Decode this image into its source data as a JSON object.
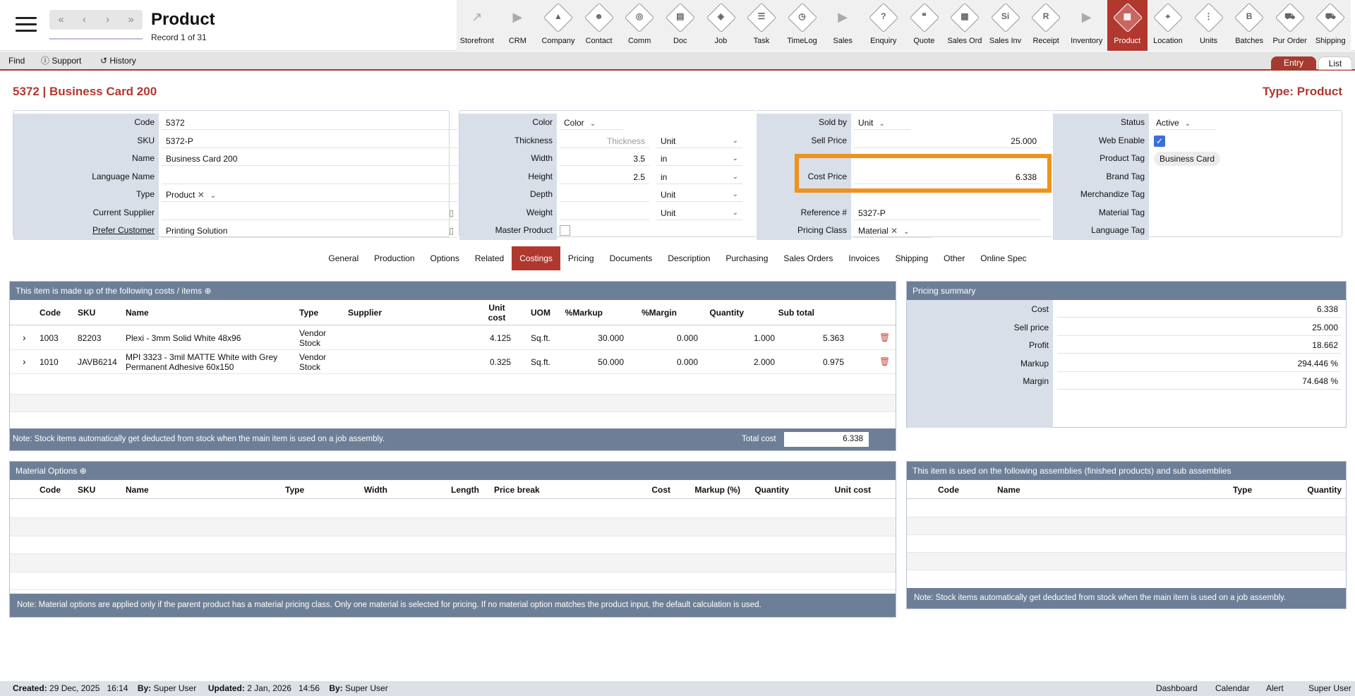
{
  "header": {
    "title": "Product",
    "record": "Record 1 of 31"
  },
  "nav_buttons": [
    "«",
    "‹",
    "›",
    "»"
  ],
  "modules": [
    {
      "label": "Storefront",
      "kind": "ext",
      "icon": "external-link-icon"
    },
    {
      "label": "CRM",
      "kind": "arrow",
      "icon": "arrow-right-icon"
    },
    {
      "label": "Company",
      "kind": "ic",
      "icon": "company-icon",
      "glyph": "▲"
    },
    {
      "label": "Contact",
      "kind": "ic",
      "icon": "contact-icon",
      "glyph": "☻"
    },
    {
      "label": "Comm",
      "kind": "ic",
      "icon": "globe-icon",
      "glyph": "◎"
    },
    {
      "label": "Doc",
      "kind": "ic",
      "icon": "document-icon",
      "glyph": "▤"
    },
    {
      "label": "Job",
      "kind": "ic",
      "icon": "job-icon",
      "glyph": "◈"
    },
    {
      "label": "Task",
      "kind": "ic",
      "icon": "clipboard-icon",
      "glyph": "☰"
    },
    {
      "label": "TimeLog",
      "kind": "ic",
      "icon": "clock-icon",
      "glyph": "◷"
    },
    {
      "label": "Sales",
      "kind": "arrow",
      "icon": "arrow-right-icon"
    },
    {
      "label": "Enquiry",
      "kind": "ic",
      "icon": "enquiry-icon",
      "glyph": "?"
    },
    {
      "label": "Quote",
      "kind": "ic",
      "icon": "quote-icon",
      "glyph": "❝"
    },
    {
      "label": "Sales Ord",
      "kind": "ic",
      "icon": "sales-order-icon",
      "glyph": "▦"
    },
    {
      "label": "Sales Inv",
      "kind": "ic",
      "icon": "sales-invoice-icon",
      "glyph": "Si"
    },
    {
      "label": "Receipt",
      "kind": "ic",
      "icon": "receipt-icon",
      "glyph": "R"
    },
    {
      "label": "Inventory",
      "kind": "arrow",
      "icon": "arrow-right-icon"
    },
    {
      "label": "Product",
      "kind": "ic",
      "icon": "product-icon",
      "glyph": "▦",
      "active": true
    },
    {
      "label": "Location",
      "kind": "ic",
      "icon": "location-icon",
      "glyph": "⌖"
    },
    {
      "label": "Units",
      "kind": "ic",
      "icon": "units-icon",
      "glyph": "⋮"
    },
    {
      "label": "Batches",
      "kind": "ic",
      "icon": "batches-icon",
      "glyph": "B"
    },
    {
      "label": "Pur Order",
      "kind": "ic",
      "icon": "cart-icon",
      "glyph": "⛟"
    },
    {
      "label": "Shipping",
      "kind": "ic",
      "icon": "truck-icon",
      "glyph": "⛟"
    }
  ],
  "toolbar": {
    "find": "Find",
    "support": "Support",
    "history": "History",
    "entry": "Entry",
    "list": "List"
  },
  "record_title": "5372 | Business Card 200",
  "record_type": "Type: Product",
  "form1": [
    {
      "label": "Code",
      "value": "5372"
    },
    {
      "label": "SKU",
      "value": "5372-P"
    },
    {
      "label": "Name",
      "value": "Business Card 200"
    },
    {
      "label": "Language Name",
      "value": ""
    },
    {
      "label": "Type",
      "value": "Product"
    },
    {
      "label": "Current Supplier",
      "value": ""
    },
    {
      "label": "Prefer Customer",
      "value": "Printing Solution"
    }
  ],
  "form2": [
    {
      "label": "Color",
      "value": "Color",
      "unit": ""
    },
    {
      "label": "Thickness",
      "value": "Thickness",
      "unit": "Unit"
    },
    {
      "label": "Width",
      "value": "3.5",
      "unit": "in"
    },
    {
      "label": "Height",
      "value": "2.5",
      "unit": "in"
    },
    {
      "label": "Depth",
      "value": "",
      "unit": "Unit"
    },
    {
      "label": "Weight",
      "value": "",
      "unit": "Unit"
    },
    {
      "label": "Master Product",
      "value": "",
      "unit": ""
    }
  ],
  "form3": [
    {
      "label": "Sold by",
      "value": "Unit"
    },
    {
      "label": "Sell Price",
      "value": "25.000"
    },
    {
      "label": "",
      "value": ""
    },
    {
      "label": "Cost Price",
      "value": "6.338"
    },
    {
      "label": "",
      "value": ""
    },
    {
      "label": "Reference #",
      "value": "5327-P"
    },
    {
      "label": "Pricing Class",
      "value": "Material"
    }
  ],
  "form4": [
    {
      "label": "Status",
      "value": "Active"
    },
    {
      "label": "Web Enable",
      "value": ""
    },
    {
      "label": "Product Tag",
      "value": "Business Card"
    },
    {
      "label": "Brand Tag",
      "value": ""
    },
    {
      "label": "Merchandize Tag",
      "value": ""
    },
    {
      "label": "Material Tag",
      "value": ""
    },
    {
      "label": "Language Tag",
      "value": ""
    }
  ],
  "tabs": [
    "General",
    "Production",
    "Options",
    "Related",
    "Costings",
    "Pricing",
    "Documents",
    "Description",
    "Purchasing",
    "Sales Orders",
    "Invoices",
    "Shipping",
    "Other",
    "Online Spec"
  ],
  "active_tab": "Costings",
  "costs": {
    "title": "This item is made up of the following costs / items",
    "columns": [
      "Code",
      "SKU",
      "Name",
      "Type",
      "Supplier",
      "Unit cost",
      "UOM",
      "%Markup",
      "%Margin",
      "Quantity",
      "Sub total"
    ],
    "rows": [
      {
        "code": "1003",
        "sku": "82203",
        "name": "Plexi - 3mm Solid White 48x96",
        "type": "Vendor Stock",
        "supplier": "",
        "unit_cost": "4.125",
        "uom": "Sq.ft.",
        "markup": "30.000",
        "margin": "0.000",
        "qty": "1.000",
        "subtotal": "5.363"
      },
      {
        "code": "1010",
        "sku": "JAVB6214",
        "name": "MPI 3323 - 3mil MATTE White with Grey Permanent Adhesive 60x150",
        "type": "Vendor Stock",
        "supplier": "",
        "unit_cost": "0.325",
        "uom": "Sq.ft.",
        "markup": "50.000",
        "margin": "0.000",
        "qty": "2.000",
        "subtotal": "0.975"
      }
    ],
    "note": "Note: Stock items automatically get deducted from stock when the main item is used on a job assembly.",
    "total_label": "Total cost",
    "total_value": "6.338"
  },
  "pricing_summary": {
    "title": "Pricing summary",
    "rows": [
      {
        "label": "Cost",
        "value": "6.338"
      },
      {
        "label": "Sell price",
        "value": "25.000"
      },
      {
        "label": "Profit",
        "value": "18.662"
      },
      {
        "label": "Markup",
        "value": "294.446 %"
      },
      {
        "label": "Margin",
        "value": "74.648 %"
      }
    ]
  },
  "material_options": {
    "title": "Material Options",
    "columns": [
      "Code",
      "SKU",
      "Name",
      "Type",
      "Width",
      "Length",
      "Price break",
      "Cost",
      "Markup (%)",
      "Quantity",
      "Unit cost"
    ],
    "note": "Note: Material options are applied only if the parent product has a material pricing class. Only one material is selected for pricing. If no material option matches the product input, the default calculation is used."
  },
  "assemblies": {
    "title": "This item is used on the following assemblies (finished products) and sub assemblies",
    "columns": [
      "Code",
      "Name",
      "Type",
      "Quantity"
    ],
    "note": "Note: Stock items automatically get deducted from stock when the main item is used on a job assembly."
  },
  "footer": {
    "created_label": "Created:",
    "created": "29 Dec, 2025",
    "created_time": "16:14",
    "by_label": "By:",
    "created_by": "Super User",
    "updated_label": "Updated:",
    "updated": "2 Jan, 2026",
    "updated_time": "14:56",
    "updated_by": "Super User",
    "links": [
      "Dashboard",
      "Calendar",
      "Alert",
      "Super User"
    ]
  },
  "colors": {
    "accent": "#b1382e",
    "panel_header": "#6d7f97",
    "label_bg": "#d8dfe9",
    "highlight": "#f0921c"
  }
}
